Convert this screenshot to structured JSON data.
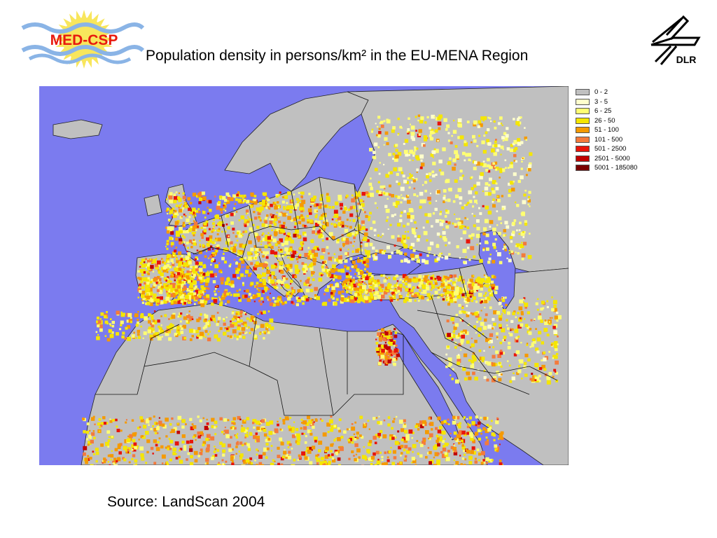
{
  "header": {
    "title": "Population density in persons/km² in the EU-MENA Region",
    "left_logo_text": "MED-CSP",
    "right_logo_text": "DLR"
  },
  "colors": {
    "sea": "#7b7bef",
    "no_data_land": "#c0c0c0",
    "border_lines": "#111111",
    "logo_red": "#e8190e",
    "logo_blue": "#8ab4e6",
    "logo_sun": "#f8e65c"
  },
  "legend": {
    "items": [
      {
        "label": "0 - 2",
        "color": "#c0c0c0"
      },
      {
        "label": "3 - 5",
        "color": "#ffffcc"
      },
      {
        "label": "6 - 25",
        "color": "#ffff73"
      },
      {
        "label": "26 - 50",
        "color": "#f5e600"
      },
      {
        "label": "51 - 100",
        "color": "#f59a00"
      },
      {
        "label": "101 - 500",
        "color": "#f47a3c"
      },
      {
        "label": "501 - 2500",
        "color": "#e8140a"
      },
      {
        "label": "2501 - 5000",
        "color": "#c00000"
      },
      {
        "label": "5001 - 185080",
        "color": "#7a0000"
      }
    ]
  },
  "map": {
    "region": "EU-MENA"
  },
  "footer": {
    "source": "Source: LandScan 2004"
  }
}
